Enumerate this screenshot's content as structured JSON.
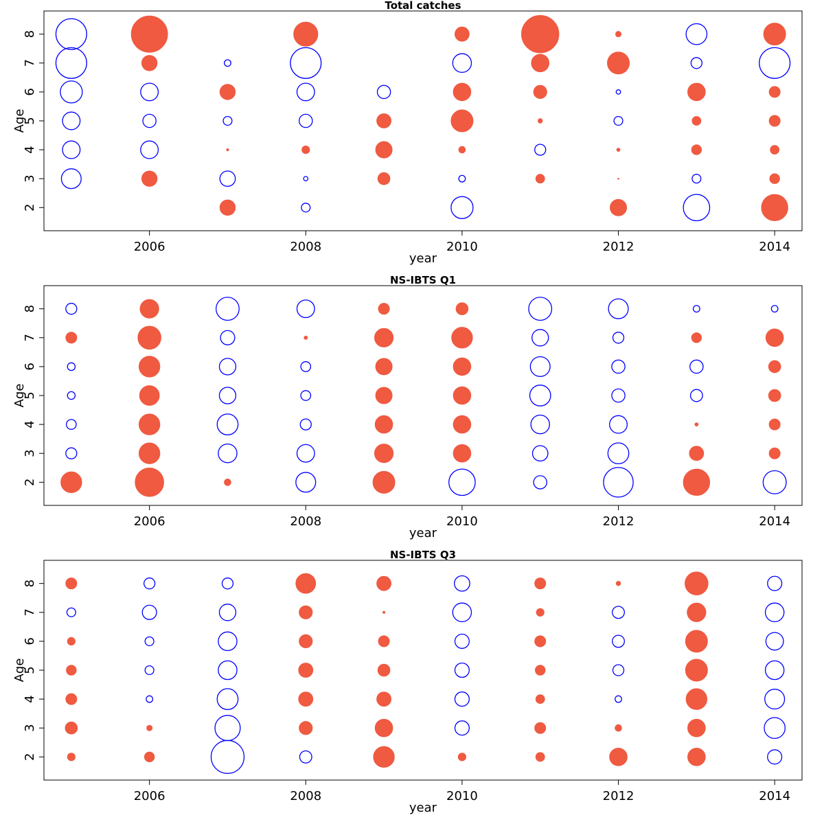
{
  "colors": {
    "positive": "#ef5a41",
    "negative": "#0000ff",
    "axis": "#000000"
  },
  "chart_data": [
    {
      "type": "scatter",
      "title": "Total catches",
      "xlabel": "year",
      "ylabel": "Age",
      "xlim": [
        2004.65,
        2014.35
      ],
      "ylim": [
        1.2,
        8.8
      ],
      "xticks": [
        "2006",
        "2008",
        "2010",
        "2012",
        "2014"
      ],
      "yticks": [
        "2",
        "3",
        "4",
        "5",
        "6",
        "7",
        "8"
      ],
      "years": [
        2005,
        2006,
        2007,
        2008,
        2009,
        2010,
        2011,
        2012,
        2013,
        2014
      ],
      "ages": [
        2,
        3,
        4,
        5,
        6,
        7,
        8
      ],
      "values": [
        [
          0,
          0,
          0.7,
          -0.4,
          0,
          -1.0,
          0,
          0.75,
          -1.2,
          1.2
        ],
        [
          -0.9,
          0.7,
          -0.7,
          -0.2,
          0.55,
          -0.3,
          0.4,
          0.05,
          -0.4,
          0.45
        ],
        [
          -0.8,
          -0.8,
          0.1,
          0.35,
          0.75,
          0.3,
          -0.5,
          0.15,
          0.45,
          0.4
        ],
        [
          -0.8,
          -0.6,
          -0.4,
          -0.6,
          0.65,
          1.0,
          0.2,
          -0.4,
          0.4,
          0.5
        ],
        [
          -1.0,
          -0.8,
          0.7,
          -0.8,
          -0.6,
          0.8,
          0.6,
          -0.2,
          0.8,
          0.5
        ],
        [
          -1.4,
          0.7,
          -0.3,
          -1.4,
          0,
          -0.85,
          0.8,
          1.0,
          -0.5,
          -1.4
        ],
        [
          -1.4,
          1.65,
          0,
          1.1,
          0,
          0.65,
          1.7,
          0.25,
          -0.95,
          1.0
        ]
      ]
    },
    {
      "type": "scatter",
      "title": "NS-IBTS Q1",
      "xlabel": "year",
      "ylabel": "Age",
      "xlim": [
        2004.65,
        2014.35
      ],
      "ylim": [
        1.2,
        8.8
      ],
      "xticks": [
        "2006",
        "2008",
        "2010",
        "2012",
        "2014"
      ],
      "yticks": [
        "2",
        "3",
        "4",
        "5",
        "6",
        "7",
        "8"
      ],
      "years": [
        2005,
        2006,
        2007,
        2008,
        2009,
        2010,
        2011,
        2012,
        2013,
        2014
      ],
      "ages": [
        2,
        3,
        4,
        5,
        6,
        7,
        8
      ],
      "values": [
        [
          0.95,
          1.3,
          0.3,
          -0.9,
          1.0,
          -1.2,
          -0.6,
          -1.35,
          1.2,
          -1.05
        ],
        [
          -0.5,
          0.95,
          -0.85,
          -0.8,
          0.85,
          0.8,
          -0.7,
          -0.95,
          0.65,
          0.5
        ],
        [
          -0.45,
          0.95,
          -0.95,
          -0.5,
          0.8,
          0.8,
          -0.85,
          -0.8,
          0.15,
          0.5
        ],
        [
          -0.35,
          0.9,
          -0.75,
          -0.45,
          0.75,
          0.8,
          -0.95,
          -0.6,
          -0.55,
          0.55
        ],
        [
          -0.35,
          0.95,
          -0.75,
          -0.45,
          0.75,
          0.8,
          -0.9,
          -0.6,
          -0.6,
          0.55
        ],
        [
          0.5,
          1.05,
          -0.65,
          0.15,
          0.85,
          0.95,
          -0.75,
          -0.5,
          0.45,
          0.8
        ],
        [
          -0.5,
          0.85,
          -1.05,
          -0.8,
          0.5,
          0.55,
          -1.05,
          -0.9,
          -0.3,
          -0.3
        ]
      ]
    },
    {
      "type": "scatter",
      "title": "NS-IBTS Q3",
      "xlabel": "year",
      "ylabel": "Age",
      "xlim": [
        2004.65,
        2014.35
      ],
      "ylim": [
        1.2,
        8.8
      ],
      "xticks": [
        "2006",
        "2008",
        "2010",
        "2012",
        "2014"
      ],
      "yticks": [
        "2",
        "3",
        "4",
        "5",
        "6",
        "7",
        "8"
      ],
      "years": [
        2005,
        2006,
        2007,
        2008,
        2009,
        2010,
        2011,
        2012,
        2013,
        2014
      ],
      "ages": [
        2,
        3,
        4,
        5,
        6,
        7,
        8
      ],
      "values": [
        [
          0.35,
          0.45,
          -1.5,
          -0.55,
          0.95,
          0.35,
          0.4,
          0.8,
          0.8,
          -0.65
        ],
        [
          0.55,
          0.25,
          -1.15,
          0.6,
          0.8,
          -0.65,
          0.5,
          0.3,
          0.8,
          -0.95
        ],
        [
          0.5,
          -0.3,
          -0.95,
          0.65,
          0.65,
          -0.65,
          0.4,
          -0.3,
          0.95,
          -0.9
        ],
        [
          0.45,
          -0.4,
          -0.85,
          0.65,
          0.55,
          -0.65,
          0.45,
          -0.5,
          1.0,
          -0.85
        ],
        [
          0.35,
          -0.4,
          -0.85,
          0.6,
          0.5,
          -0.65,
          0.5,
          -0.55,
          1.0,
          -0.8
        ],
        [
          -0.4,
          -0.65,
          -0.75,
          0.6,
          0.1,
          -0.85,
          0.35,
          -0.55,
          0.85,
          -0.85
        ],
        [
          0.5,
          -0.5,
          -0.5,
          0.9,
          0.65,
          -0.7,
          0.5,
          0.2,
          1.05,
          -0.65
        ]
      ]
    }
  ]
}
